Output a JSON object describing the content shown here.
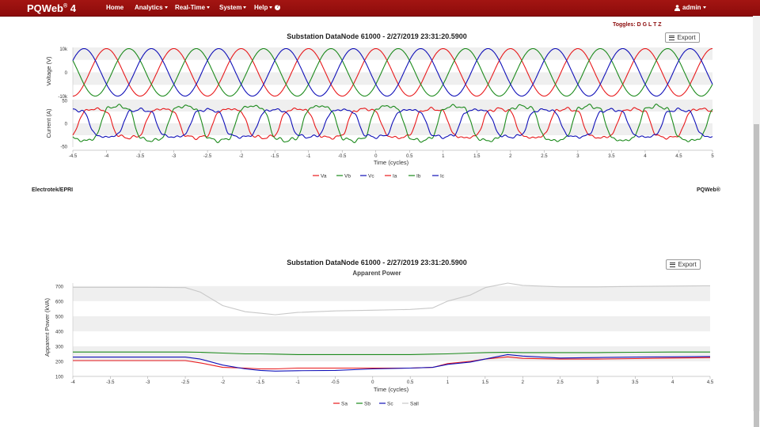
{
  "navbar": {
    "brand": "PQWeb",
    "brand_sup": "®",
    "brand_version": "4",
    "items": [
      {
        "label": "Home",
        "dropdown": false
      },
      {
        "label": "Analytics",
        "dropdown": true
      },
      {
        "label": "Real-Time",
        "dropdown": true
      },
      {
        "label": "System",
        "dropdown": true
      },
      {
        "label": "Help",
        "dropdown": true
      }
    ],
    "user": "admin"
  },
  "toggles_text": "Toggles: D G L T Z",
  "export_label": "Export",
  "footer": {
    "left": "Electrotek/EPRI",
    "right": "PQWeb®"
  },
  "colors": {
    "navbar": "#8c0b0b",
    "phase_a": "#e8191b",
    "phase_b": "#1c8a1c",
    "phase_c": "#1010b8",
    "sall": "#c8c8c8"
  },
  "chart_data": [
    {
      "type": "line",
      "title": "Substation DataNode 61000 - 2/27/2019 23:31:20.5900",
      "xlabel": "Time (cycles)",
      "xlim": [
        -4.5,
        5
      ],
      "xticks": [
        "-4.5",
        "-4",
        "-3.5",
        "-3",
        "-2.5",
        "-2",
        "-1.5",
        "-1",
        "-0.5",
        "0",
        "0.5",
        "1",
        "1.5",
        "2",
        "2.5",
        "3",
        "3.5",
        "4",
        "4.5",
        "5"
      ],
      "panels": [
        {
          "ylabel": "Voltage (V)",
          "yticks": [
            "10k",
            "0",
            "-10k"
          ],
          "ylim": [
            -10500,
            10500
          ]
        },
        {
          "ylabel": "Current (A)",
          "yticks": [
            "50",
            "0",
            "-50"
          ],
          "ylim": [
            -52,
            52
          ]
        }
      ],
      "legend": [
        "Va",
        "Vb",
        "Vc",
        "Ia",
        "Ib",
        "Ic"
      ],
      "series": [
        {
          "name": "Va",
          "waveform": "sine",
          "amplitude": 10000,
          "phase_deg": 90
        },
        {
          "name": "Vb",
          "waveform": "sine",
          "amplitude": 10000,
          "phase_deg": -30
        },
        {
          "name": "Vc",
          "waveform": "sine",
          "amplitude": 10000,
          "phase_deg": 210
        },
        {
          "name": "Ia",
          "waveform": "distorted-sine",
          "amplitude": 40,
          "phase_deg": 150
        },
        {
          "name": "Ib",
          "waveform": "distorted-sine",
          "amplitude": 48,
          "phase_deg": 30
        },
        {
          "name": "Ic",
          "waveform": "distorted-sine",
          "amplitude": 38,
          "phase_deg": 270
        }
      ]
    },
    {
      "type": "line",
      "title": "Substation DataNode 61000 - 2/27/2019 23:31:20.5900",
      "subtitle": "Apparent Power",
      "xlabel": "Time (cycles)",
      "ylabel": "Apparent Power (kVA)",
      "xlim": [
        -4,
        4.5
      ],
      "ylim": [
        100,
        720
      ],
      "xticks": [
        "-4",
        "-3.5",
        "-3",
        "-2.5",
        "-2",
        "-1.5",
        "-1",
        "-0.5",
        "0",
        "0.5",
        "1",
        "1.5",
        "2",
        "2.5",
        "3",
        "3.5",
        "4",
        "4.5"
      ],
      "yticks": [
        "100",
        "200",
        "300",
        "400",
        "500",
        "600",
        "700"
      ],
      "legend": [
        "Sa",
        "Sb",
        "Sc",
        "Sall"
      ],
      "x": [
        -4,
        -3.5,
        -3,
        -2.5,
        -2.3,
        -2,
        -1.7,
        -1.5,
        -1.3,
        -1,
        -0.5,
        0,
        0.5,
        0.8,
        1,
        1.3,
        1.5,
        1.8,
        2,
        2.5,
        3,
        3.5,
        4,
        4.5
      ],
      "series": [
        {
          "name": "Sa",
          "values": [
            205,
            205,
            205,
            205,
            190,
            160,
            155,
            150,
            150,
            155,
            155,
            155,
            155,
            160,
            185,
            200,
            215,
            230,
            220,
            215,
            215,
            218,
            222,
            225
          ]
        },
        {
          "name": "Sb",
          "values": [
            262,
            262,
            262,
            262,
            260,
            255,
            250,
            250,
            248,
            245,
            245,
            245,
            245,
            248,
            250,
            255,
            258,
            260,
            258,
            258,
            258,
            260,
            262,
            262
          ]
        },
        {
          "name": "Sc",
          "values": [
            228,
            228,
            228,
            228,
            215,
            175,
            150,
            140,
            135,
            138,
            140,
            150,
            155,
            160,
            180,
            195,
            215,
            245,
            235,
            222,
            225,
            228,
            230,
            232
          ]
        },
        {
          "name": "Sall",
          "values": [
            692,
            692,
            692,
            690,
            660,
            570,
            530,
            520,
            510,
            525,
            535,
            540,
            545,
            555,
            600,
            640,
            690,
            720,
            705,
            695,
            695,
            698,
            700,
            702
          ]
        }
      ]
    }
  ]
}
